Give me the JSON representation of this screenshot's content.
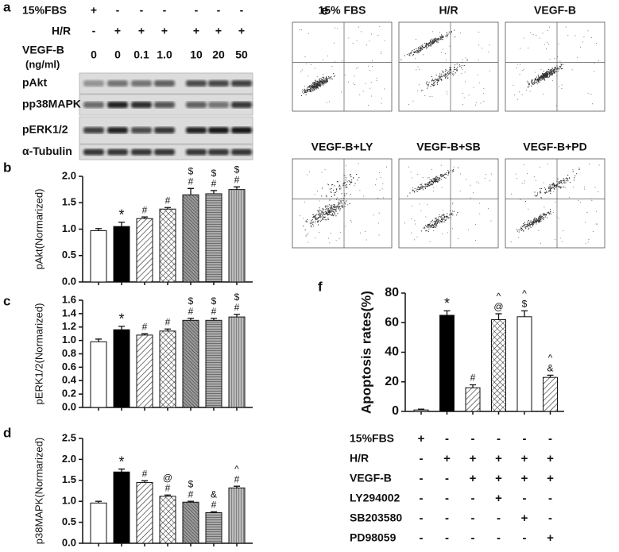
{
  "panel_a": {
    "letter": "a",
    "rows": [
      {
        "label": "15%FBS",
        "cells": [
          "+",
          "-",
          "-",
          "-",
          "-",
          "-",
          "-"
        ]
      },
      {
        "label": "H/R",
        "cells": [
          "-",
          "+",
          "+",
          "+",
          "+",
          "+",
          "+"
        ]
      },
      {
        "label": "VEGF-B",
        "unit": "(ng/ml)",
        "cells": [
          "0",
          "0",
          "0.1",
          "1.0",
          "10",
          "20",
          "50"
        ]
      }
    ],
    "blots": [
      "pAkt",
      "pp38MAPK",
      "pERK1/2",
      "α-Tubulin"
    ]
  },
  "panel_e": {
    "letter": "e",
    "plots": [
      "15%  FBS",
      "H/R",
      "VEGF-B",
      "VEGF-B+LY",
      "VEGF-B+SB",
      "VEGF-B+PD"
    ]
  },
  "chart_data": [
    {
      "type": "bar",
      "panel": "b",
      "ylabel": "pAkt(Normarized)",
      "values": [
        0.97,
        1.05,
        1.2,
        1.38,
        1.65,
        1.67,
        1.75
      ],
      "errors": [
        0.04,
        0.08,
        0.03,
        0.03,
        0.12,
        0.06,
        0.05
      ],
      "annotations": [
        [],
        [
          "*"
        ],
        [
          "#"
        ],
        [
          "#"
        ],
        [
          "$",
          "#"
        ],
        [
          "$",
          "#"
        ],
        [
          "$",
          "#"
        ]
      ],
      "fills": [
        "white",
        "black",
        "hatch-diag",
        "hatch-cross",
        "hatch-dense",
        "hatch-dense-h",
        "hatch-vertical"
      ],
      "ylim": [
        0,
        2.0
      ],
      "yticks": [
        {
          "value": 0,
          "label": "0.0"
        },
        0.5,
        {
          "value": 1,
          "label": "1.0"
        },
        1.5,
        {
          "value": 2,
          "label": "2.0"
        }
      ]
    },
    {
      "type": "bar",
      "panel": "c",
      "ylabel": "pERK1/2(Normarized)",
      "values": [
        0.98,
        1.16,
        1.08,
        1.14,
        1.3,
        1.3,
        1.35
      ],
      "errors": [
        0.04,
        0.05,
        0.02,
        0.03,
        0.03,
        0.03,
        0.04
      ],
      "annotations": [
        [],
        [
          "*"
        ],
        [
          "#"
        ],
        [
          "#"
        ],
        [
          "$",
          "#"
        ],
        [
          "$",
          "#"
        ],
        [
          "$",
          "#"
        ]
      ],
      "fills": [
        "white",
        "black",
        "hatch-diag",
        "hatch-cross",
        "hatch-dense",
        "hatch-dense-h",
        "hatch-vertical"
      ],
      "ylim": [
        0,
        1.6
      ],
      "yticks": [
        {
          "value": 0,
          "label": "0.0"
        },
        0.2,
        0.4,
        0.6,
        0.8,
        {
          "value": 1,
          "label": "1.0"
        },
        1.2,
        1.4,
        1.6
      ]
    },
    {
      "type": "bar",
      "panel": "d",
      "ylabel": "p38MAPK(Normarized)",
      "values": [
        0.96,
        1.7,
        1.45,
        1.12,
        0.98,
        0.73,
        1.32
      ],
      "errors": [
        0.04,
        0.07,
        0.04,
        0.03,
        0.02,
        0.02,
        0.04
      ],
      "annotations": [
        [],
        [
          "*"
        ],
        [
          "#"
        ],
        [
          "@",
          "#"
        ],
        [
          "$",
          "#"
        ],
        [
          "&",
          "#"
        ],
        [
          "^",
          "#"
        ]
      ],
      "fills": [
        "white",
        "black",
        "hatch-diag",
        "hatch-cross",
        "hatch-dense",
        "hatch-dense-h",
        "hatch-vertical"
      ],
      "ylim": [
        0,
        2.5
      ],
      "yticks": [
        {
          "value": 0,
          "label": "0.0"
        },
        0.5,
        {
          "value": 1,
          "label": "1.0"
        },
        1.5,
        {
          "value": 2,
          "label": "2.0"
        },
        2.5
      ]
    },
    {
      "type": "bar",
      "panel": "f",
      "ylabel": "Apoptosis rates(%)",
      "values": [
        1,
        65,
        16,
        62,
        64,
        23
      ],
      "errors": [
        0.5,
        3,
        2,
        4,
        4,
        1.5
      ],
      "annotations": [
        [],
        [
          "*"
        ],
        [
          "#"
        ],
        [
          "^",
          "@"
        ],
        [
          "^",
          "$"
        ],
        [
          "^",
          "&"
        ]
      ],
      "fills": [
        "white",
        "black",
        "hatch-diag",
        "hatch-cross",
        "white",
        "hatch-diag"
      ],
      "ylim": [
        0,
        80
      ],
      "yticks": [
        0,
        20,
        40,
        60,
        80
      ],
      "conditions": [
        {
          "name": "15%FBS",
          "marks": [
            "+",
            "-",
            "-",
            "-",
            "-",
            "-"
          ]
        },
        {
          "name": "H/R",
          "marks": [
            "-",
            "+",
            "+",
            "+",
            "+",
            "+"
          ]
        },
        {
          "name": "VEGF-B",
          "marks": [
            "-",
            "-",
            "+",
            "+",
            "+",
            "+"
          ]
        },
        {
          "name": "LY294002",
          "marks": [
            "-",
            "-",
            "-",
            "+",
            "-",
            "-"
          ]
        },
        {
          "name": "SB203580",
          "marks": [
            "-",
            "-",
            "-",
            "-",
            "+",
            "-"
          ]
        },
        {
          "name": "PD98059",
          "marks": [
            "-",
            "-",
            "-",
            "-",
            "-",
            "+"
          ]
        }
      ]
    }
  ]
}
